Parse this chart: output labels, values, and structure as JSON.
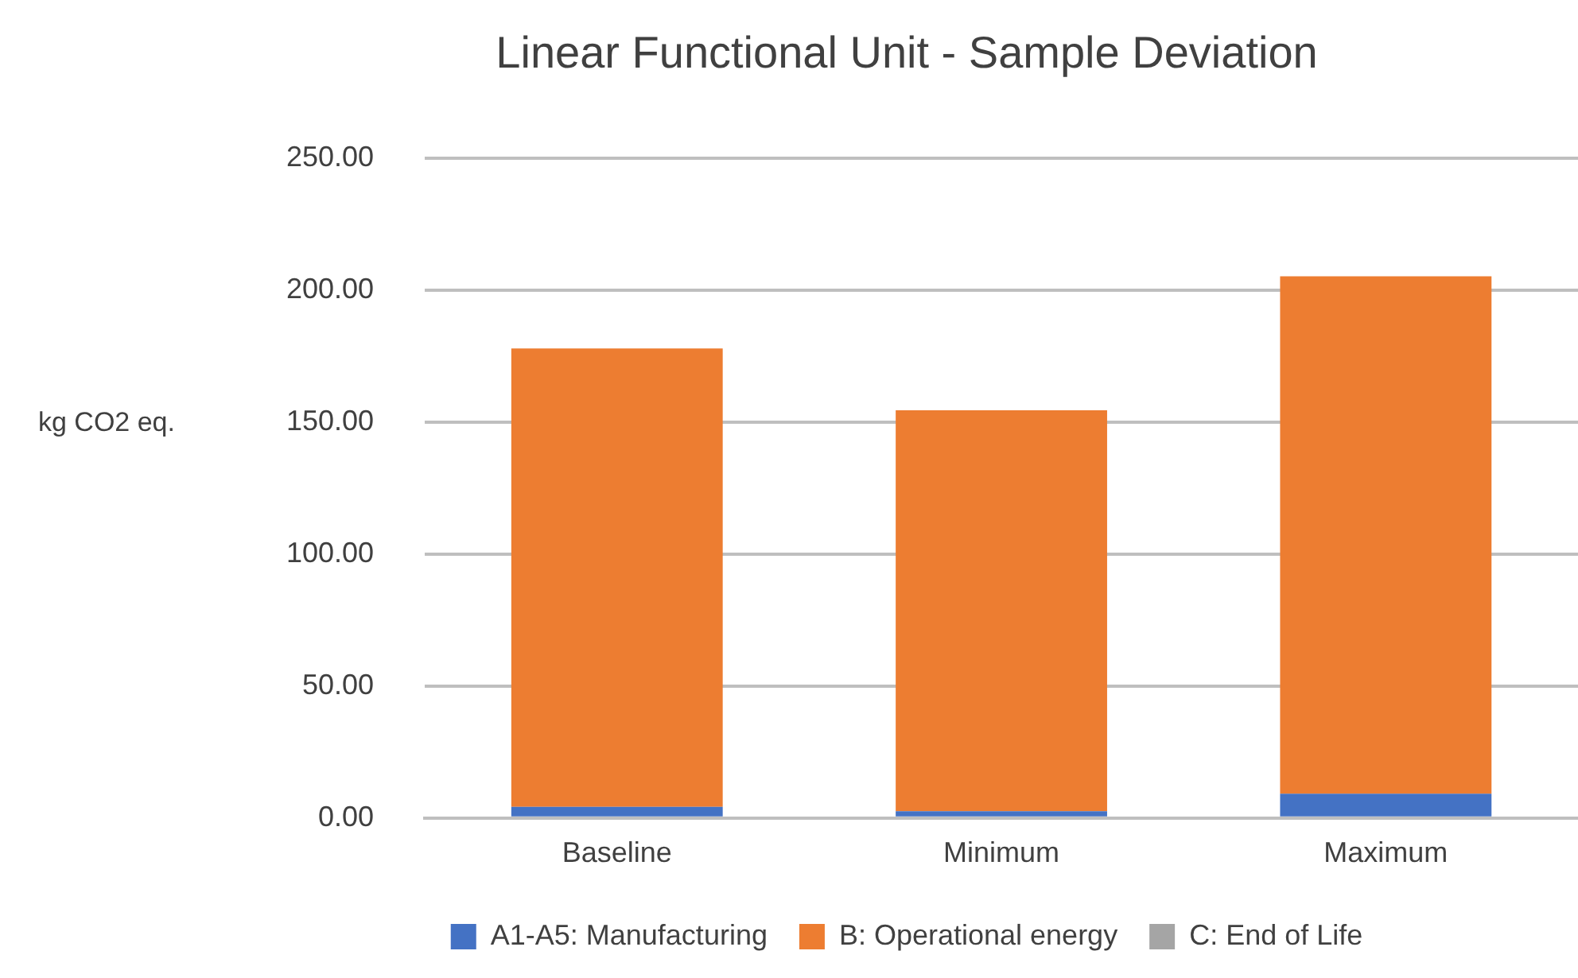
{
  "chart_data": {
    "type": "bar",
    "title": "Linear Functional Unit - Sample Deviation",
    "ylabel": "kg CO2 eq.",
    "categories": [
      "Baseline",
      "Minimum",
      "Maximum"
    ],
    "stacked": true,
    "series": [
      {
        "name": "A1-A5: Manufacturing",
        "color": "#4472c4",
        "values": [
          4.2,
          2.6,
          9.2
        ]
      },
      {
        "name": "B: Operational energy",
        "color": "#ed7d31",
        "values": [
          173.8,
          151.9,
          196.1
        ]
      },
      {
        "name": "C: End of Life",
        "color": "#a5a5a5",
        "values": [
          0,
          0,
          0
        ]
      }
    ],
    "ylim": [
      0,
      250
    ],
    "yticks": [
      {
        "value": 0,
        "label": "0.00"
      },
      {
        "value": 50,
        "label": "50.00"
      },
      {
        "value": 100,
        "label": "100.00"
      },
      {
        "value": 150,
        "label": "150.00"
      },
      {
        "value": 200,
        "label": "200.00"
      },
      {
        "value": 250,
        "label": "250.00"
      }
    ],
    "grid": "y",
    "legend": "bottom"
  }
}
